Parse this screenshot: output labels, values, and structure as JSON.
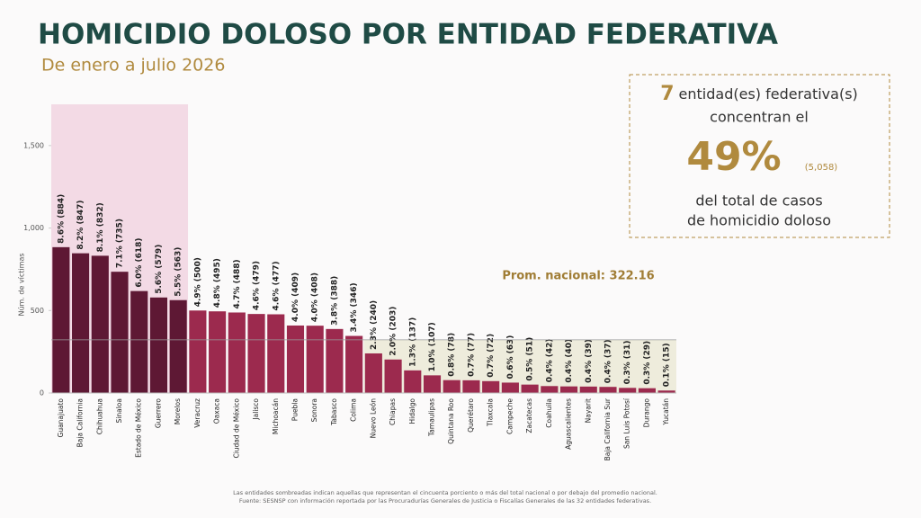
{
  "header": {
    "title": "HOMICIDIO DOLOSO POR ENTIDAD FEDERATIVA",
    "subtitle": "De enero a julio 2026"
  },
  "callout": {
    "count": "7",
    "line1": "entidad(es) federativa(s)",
    "line2": "concentran el",
    "percent": "49%",
    "total": "(5,058)",
    "line3": "del total de casos",
    "line4": "de homicidio doloso"
  },
  "chart_data": {
    "type": "bar",
    "y_label": "Núm. de víctimas",
    "categories": [
      "Guanajuato",
      "Baja California",
      "Chihuahua",
      "Sinaloa",
      "Estado de México",
      "Guerrero",
      "Morelos",
      "Veracruz",
      "Oaxaca",
      "Ciudad de México",
      "Jalisco",
      "Michoacán",
      "Puebla",
      "Sonora",
      "Tabasco",
      "Colima",
      "Nuevo León",
      "Chiapas",
      "Hidalgo",
      "Tamaulipas",
      "Quintana Roo",
      "Querétaro",
      "Tlaxcala",
      "Campeche",
      "Zacatecas",
      "Coahuila",
      "Aguascalientes",
      "Nayarit",
      "Baja California Sur",
      "San Luis Potosí",
      "Durango",
      "Yucatán"
    ],
    "values": [
      884,
      847,
      832,
      735,
      618,
      579,
      563,
      500,
      495,
      488,
      479,
      477,
      409,
      408,
      388,
      346,
      240,
      203,
      137,
      107,
      78,
      77,
      72,
      63,
      51,
      42,
      40,
      39,
      37,
      31,
      29,
      15
    ],
    "value_labels": [
      "8.6% (884)",
      "8.2% (847)",
      "8.1% (832)",
      "7.1% (735)",
      "6.0% (618)",
      "5.6% (579)",
      "5.5% (563)",
      "4.9% (500)",
      "4.8% (495)",
      "4.7% (488)",
      "4.6% (479)",
      "4.6% (477)",
      "4.0% (409)",
      "4.0% (408)",
      "3.8% (388)",
      "3.4% (346)",
      "2.3% (240)",
      "2.0% (203)",
      "1.3% (137)",
      "1.0% (107)",
      "0.8% (78)",
      "0.7% (77)",
      "0.7% (72)",
      "0.6% (63)",
      "0.5% (51)",
      "0.4% (42)",
      "0.4% (40)",
      "0.4% (39)",
      "0.4% (37)",
      "0.3% (31)",
      "0.3% (29)",
      "0.1% (15)"
    ],
    "colors": [
      "#5e1834",
      "#5e1834",
      "#5e1834",
      "#5e1834",
      "#5e1834",
      "#5e1834",
      "#5e1834",
      "#9c2a4e",
      "#9c2a4e",
      "#9c2a4e",
      "#9c2a4e",
      "#9c2a4e",
      "#9c2a4e",
      "#9c2a4e",
      "#9c2a4e",
      "#9c2a4e",
      "#9c2a4e",
      "#9c2a4e",
      "#9c2a4e",
      "#9c2a4e",
      "#9c2a4e",
      "#9c2a4e",
      "#9c2a4e",
      "#9c2a4e",
      "#9c2a4e",
      "#9c2a4e",
      "#9c2a4e",
      "#9c2a4e",
      "#9c2a4e",
      "#9c2a4e",
      "#9c2a4e",
      "#9c2a4e"
    ],
    "ylim": [
      0,
      1750
    ],
    "yticks": [
      0,
      500,
      {
        "value": 1000,
        "label": "1,000"
      },
      {
        "value": 1500,
        "label": "1,500"
      }
    ],
    "average": {
      "value": 322.16,
      "label": "Prom. nacional: 322.16"
    }
  },
  "footnotes": [
    "Las entidades sombreadas indican aquellas que representan el cincuenta porciento o más del total nacional o por debajo del promedio nacional.",
    "Fuente: SESNSP con información reportada por las Procuradurías Generales de Justicia o Fiscalías Generales de las 32 entidades federativas."
  ]
}
